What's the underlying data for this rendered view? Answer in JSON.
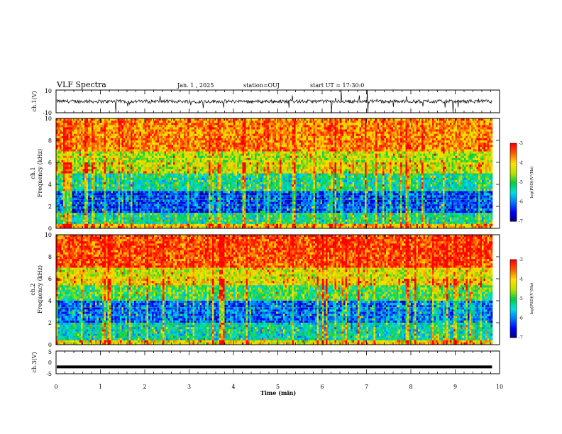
{
  "header": {
    "title": "VLF Spectra",
    "date": "Jan. 1 , 2025",
    "station": "station=OUJ",
    "start": "start UT = 17:30:0"
  },
  "colors": {
    "trace": "#000000",
    "colormap": [
      "#000078",
      "#0000ff",
      "#0078ff",
      "#00e0e0",
      "#00d040",
      "#c0e000",
      "#ffe000",
      "#ff6000",
      "#ff0000",
      "#ffffff"
    ]
  },
  "chart_data": [
    {
      "type": "line",
      "ylabel": "ch.1(V)",
      "ylim": [
        -10,
        10
      ],
      "yticks": [
        "10",
        "-10"
      ],
      "xlim": [
        0,
        10
      ],
      "description_values": {
        "baseline": 0,
        "typical_spread": 1.5,
        "spike_max": 10
      }
    },
    {
      "type": "heatmap",
      "ylabel": "ch.1 Frequency (kHz)",
      "ylim": [
        0,
        10
      ],
      "yticks": [
        "0",
        "2",
        "4",
        "6",
        "8",
        "10"
      ],
      "xlim": [
        0,
        10
      ],
      "colorbar": {
        "label": "log(PSD)(V²/Hz)",
        "ticks": [
          "-3",
          "-4",
          "-5",
          "-6",
          "-7"
        ],
        "range": [
          -7,
          -3
        ]
      },
      "bands": [
        {
          "from_khz": 0,
          "to_khz": 0.5,
          "logpsd": -4.2
        },
        {
          "from_khz": 0.5,
          "to_khz": 1.5,
          "logpsd": -5.5
        },
        {
          "from_khz": 1.5,
          "to_khz": 3.5,
          "logpsd": -6.5
        },
        {
          "from_khz": 3.5,
          "to_khz": 5.0,
          "logpsd": -5.5
        },
        {
          "from_khz": 5.0,
          "to_khz": 7.0,
          "logpsd": -4.6
        },
        {
          "from_khz": 7.0,
          "to_khz": 10,
          "logpsd": -3.8
        }
      ]
    },
    {
      "type": "heatmap",
      "ylabel": "ch.2 Frequency (kHz)",
      "ylim": [
        0,
        10
      ],
      "yticks": [
        "0",
        "2",
        "4",
        "6",
        "8",
        "10"
      ],
      "xlim": [
        0,
        10
      ],
      "colorbar": {
        "label": "log(PSD)(V²/Hz)",
        "ticks": [
          "-3",
          "-4",
          "-5",
          "-6",
          "-7"
        ],
        "range": [
          -7,
          -3
        ]
      },
      "bands": [
        {
          "from_khz": 0,
          "to_khz": 0.5,
          "logpsd": -4.4
        },
        {
          "from_khz": 0.5,
          "to_khz": 2.0,
          "logpsd": -5.6
        },
        {
          "from_khz": 2.0,
          "to_khz": 4.0,
          "logpsd": -6.3
        },
        {
          "from_khz": 4.0,
          "to_khz": 5.5,
          "logpsd": -5.2
        },
        {
          "from_khz": 5.5,
          "to_khz": 7.0,
          "logpsd": -4.4
        },
        {
          "from_khz": 7.0,
          "to_khz": 10,
          "logpsd": -3.5
        }
      ]
    },
    {
      "type": "line",
      "ylabel": "ch.3(V)",
      "ylim": [
        -5,
        5
      ],
      "yticks": [
        "5",
        "0",
        "-5"
      ],
      "xlim": [
        0,
        10
      ],
      "values_constant": -2
    }
  ],
  "xaxis": {
    "label": "Time (min)",
    "ticks": [
      "0",
      "1",
      "2",
      "3",
      "4",
      "5",
      "6",
      "7",
      "8",
      "9",
      "10"
    ],
    "data_end_min": 9.83
  }
}
